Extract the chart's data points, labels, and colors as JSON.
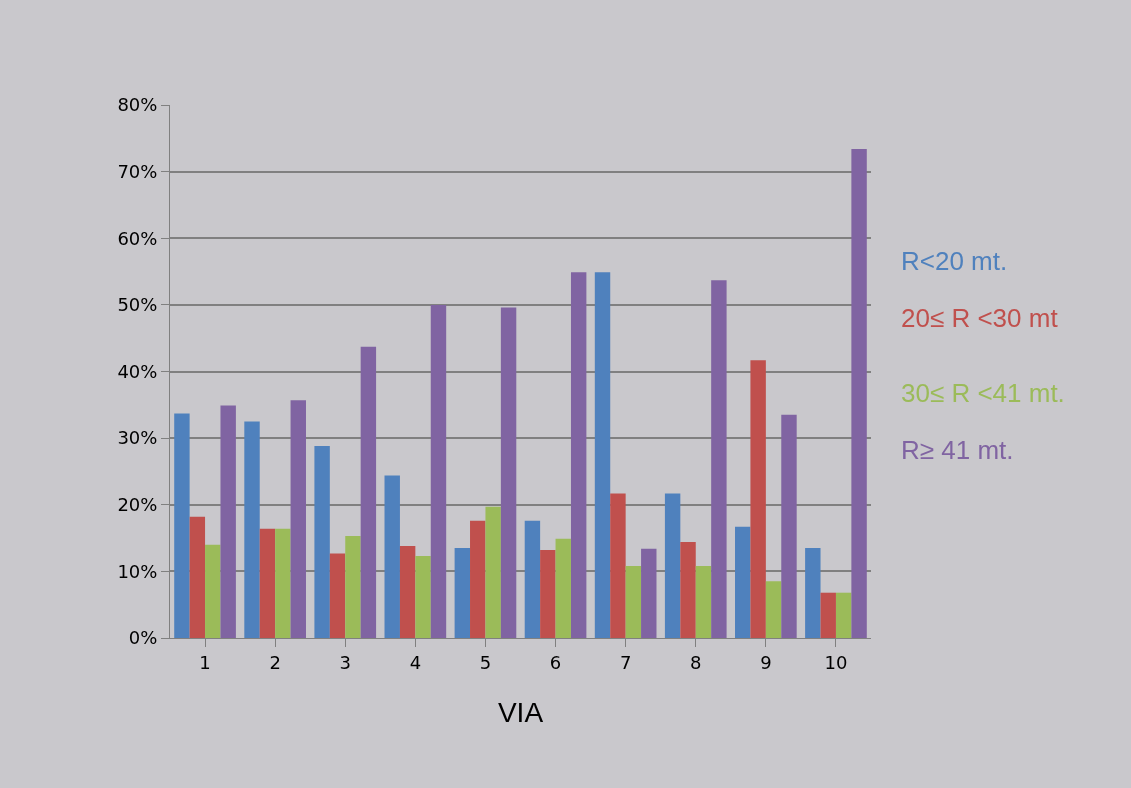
{
  "chart_data": {
    "type": "bar",
    "xlabel": "VIA",
    "categories": [
      "1",
      "2",
      "3",
      "4",
      "5",
      "6",
      "7",
      "8",
      "9",
      "10"
    ],
    "series": [
      {
        "name": "R<20 mt.",
        "color": "#4f81bd",
        "values": [
          33.7,
          32.5,
          28.8,
          24.4,
          13.5,
          17.6,
          54.9,
          21.7,
          16.7,
          13.5
        ]
      },
      {
        "name": "20≤ R <30 mt",
        "color": "#c0504d",
        "values": [
          18.2,
          16.4,
          12.7,
          13.8,
          17.6,
          13.2,
          21.7,
          14.4,
          41.7,
          6.8
        ]
      },
      {
        "name": "30≤ R <41 mt.",
        "color": "#9bbb59",
        "values": [
          14,
          16.4,
          15.3,
          12.3,
          19.7,
          14.9,
          10.8,
          10.8,
          8.5,
          6.8
        ]
      },
      {
        "name": "R≥ 41 mt.",
        "color": "#8064a2",
        "values": [
          34.9,
          35.7,
          43.7,
          50,
          49.6,
          54.9,
          13.4,
          53.7,
          33.5,
          73.4
        ]
      }
    ],
    "ylim": [
      0,
      80
    ],
    "yticks": [
      {
        "value": 0,
        "label": "0%"
      },
      {
        "value": 10,
        "label": "10%"
      },
      {
        "value": 20,
        "label": "20%"
      },
      {
        "value": 30,
        "label": "30%"
      },
      {
        "value": 40,
        "label": "40%"
      },
      {
        "value": 50,
        "label": "50%"
      },
      {
        "value": 60,
        "label": "60%"
      },
      {
        "value": 70,
        "label": "70%"
      },
      {
        "value": 80,
        "label": "80%"
      }
    ],
    "grid": "y",
    "legend": "right"
  }
}
